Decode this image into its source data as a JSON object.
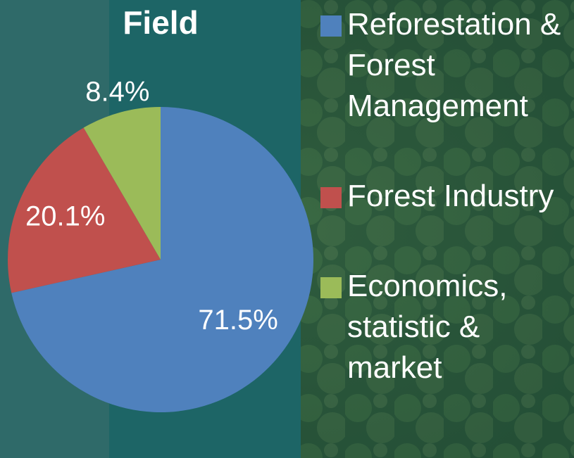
{
  "chart_data": {
    "type": "pie",
    "title": "Field",
    "categories": [
      "Reforestation & Forest Management",
      "Forest Industry",
      "Economics, statistic & market"
    ],
    "values": [
      71.5,
      20.1,
      8.4
    ],
    "value_labels": [
      "71.5%",
      "20.1%",
      "8.4%"
    ],
    "colors": [
      "#4f81bd",
      "#c0504d",
      "#9bbb59"
    ]
  }
}
